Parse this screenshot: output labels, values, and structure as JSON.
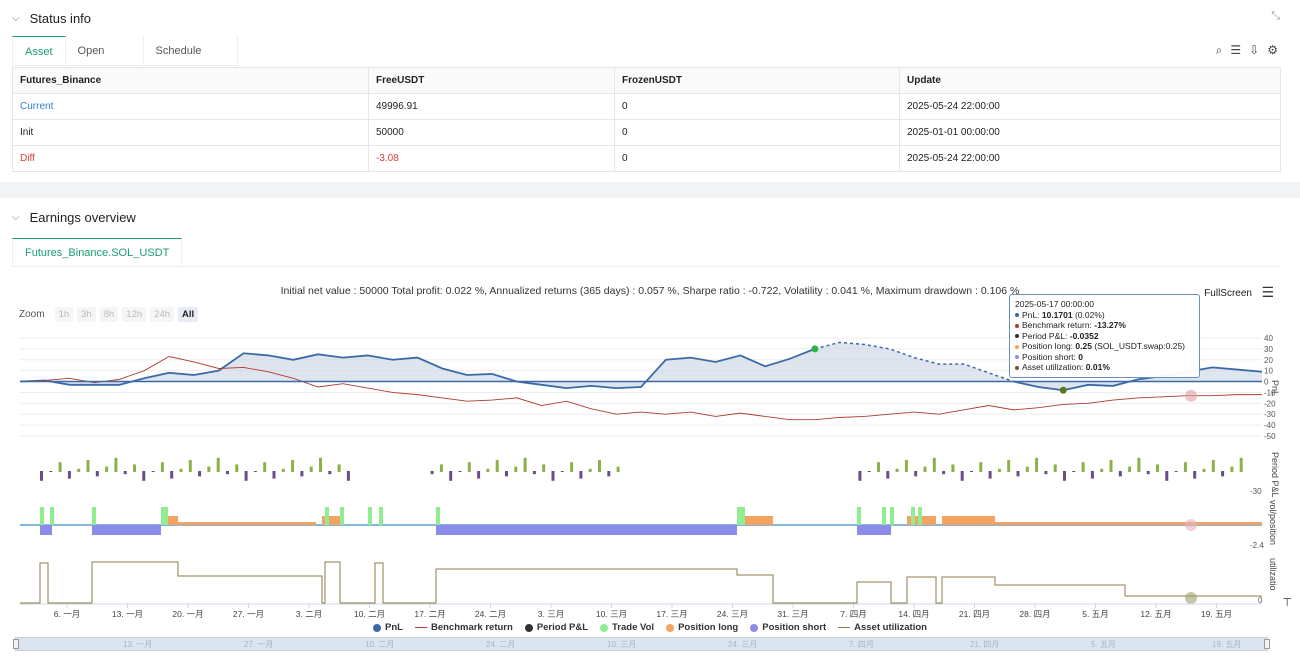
{
  "status": {
    "title": "Status info",
    "tabs": [
      "Asset",
      "Open orders",
      "Schedule orders"
    ],
    "table": {
      "headers": [
        "Futures_Binance",
        "FreeUSDT",
        "FrozenUSDT",
        "Update"
      ],
      "rows": [
        [
          "Current",
          "49996.91",
          "0",
          "2025-05-24 22:00:00"
        ],
        [
          "Init",
          "50000",
          "0",
          "2025-01-01 00:00:00"
        ],
        [
          "Diff",
          "-3.08",
          "0",
          "2025-05-24 22:00:00"
        ]
      ]
    }
  },
  "earnings": {
    "title": "Earnings overview",
    "tab": "Futures_Binance.SOL_USDT",
    "summary": "Initial net value : 50000 Total profit: 0.022 %, Annualized returns (365 days) : 0.057 %, Sharpe ratio : -0.722, Volatility : 0.041 %, Maximum drawdown : 0.106 %",
    "fullscreen_label": "FullScreen",
    "zoom": {
      "label": "Zoom",
      "buttons": [
        "1h",
        "3h",
        "8h",
        "12h",
        "24h",
        "All"
      ],
      "selected": "All"
    },
    "tooltip": {
      "date": "2025-05-17 00:00:00",
      "rows": [
        {
          "label": "PnL: ",
          "value": "10.1701",
          "extra": " (0.02%)",
          "color": "#3c6aa6"
        },
        {
          "label": "Benchmark return: ",
          "value": "-13.27%",
          "extra": "",
          "color": "#b03a2e"
        },
        {
          "label": "Period P&L: ",
          "value": "-0.0352",
          "extra": "",
          "color": "#333333"
        },
        {
          "label": "Position long: ",
          "value": "0.25",
          "extra": " (SOL_USDT.swap:0.25)",
          "color": "#f4a460"
        },
        {
          "label": "Position short: ",
          "value": "0",
          "extra": "",
          "color": "#8b8be8"
        },
        {
          "label": "Asset utilization: ",
          "value": "0.01%",
          "extra": "",
          "color": "#6b5a2a"
        }
      ]
    },
    "legend": [
      {
        "name": "PnL",
        "color": "#3c6aa6",
        "kind": "dot"
      },
      {
        "name": "Benchmark return",
        "color": "#b03a2e",
        "kind": "line"
      },
      {
        "name": "Period P&L",
        "color": "#333333",
        "kind": "dot"
      },
      {
        "name": "Trade Vol",
        "color": "#90ee90",
        "kind": "dot"
      },
      {
        "name": "Position long",
        "color": "#f4a460",
        "kind": "dot"
      },
      {
        "name": "Position short",
        "color": "#8b8be8",
        "kind": "dot"
      },
      {
        "name": "Asset utilization",
        "color": "#8b7d4a",
        "kind": "line"
      }
    ],
    "x_labels": [
      "6. 一月",
      "13. 一月",
      "20. 一月",
      "27. 一月",
      "3. 二月",
      "10. 二月",
      "17. 二月",
      "24. 二月",
      "3. 三月",
      "10. 三月",
      "17. 三月",
      "24. 三月",
      "31. 三月",
      "7. 四月",
      "14. 四月",
      "21. 四月",
      "28. 四月",
      "5. 五月",
      "12. 五月",
      "19. 五月"
    ],
    "nav_labels": [
      "13. 一月",
      "27. 一月",
      "10. 二月",
      "24. 二月",
      "10. 三月",
      "24. 三月",
      "7. 四月",
      "21. 四月",
      "5. 五月",
      "19. 五月"
    ],
    "pnl_axis": [
      "40",
      "30",
      "20",
      "10",
      "0",
      "-10",
      "-20",
      "-30",
      "-40",
      "-50"
    ],
    "pnl_axis_title": "PnL",
    "period_axis_title": "Period P&L",
    "period_axis_tick": "-30",
    "vol_axis_title": "vol/position",
    "vol_axis_tick": "-2.4",
    "util_axis_title": "utilizatio",
    "util_axis_tick": "0"
  },
  "chart_data": {
    "type": "line",
    "title": "",
    "series": [
      {
        "name": "PnL",
        "values": [
          0,
          1,
          -3,
          -3,
          -3,
          3,
          8,
          6,
          10,
          26,
          24,
          20,
          25,
          22,
          24,
          20,
          22,
          12,
          6,
          7,
          0,
          -3,
          -6,
          -4,
          -6,
          -5,
          20,
          22,
          18,
          24,
          14,
          21,
          30,
          36,
          34,
          30,
          22,
          16,
          16,
          8,
          0,
          -5,
          -8,
          -3,
          -4,
          2,
          5,
          9,
          13,
          11,
          9
        ]
      },
      {
        "name": "Benchmark return",
        "values": [
          0,
          1,
          3,
          -1,
          2,
          10,
          23,
          18,
          12,
          13,
          9,
          3,
          -5,
          -2,
          -6,
          -10,
          -12,
          -15,
          -18,
          -17,
          -15,
          -22,
          -18,
          -25,
          -30,
          -28,
          -30,
          -28,
          -32,
          -29,
          -32,
          -35,
          -35,
          -33,
          -32,
          -30,
          -28,
          -30,
          -26,
          -22,
          -26,
          -24,
          -21,
          -20,
          -17,
          -15,
          -14,
          -13,
          -13,
          -12,
          -12
        ]
      }
    ],
    "ylim": [
      -50,
      40
    ]
  }
}
